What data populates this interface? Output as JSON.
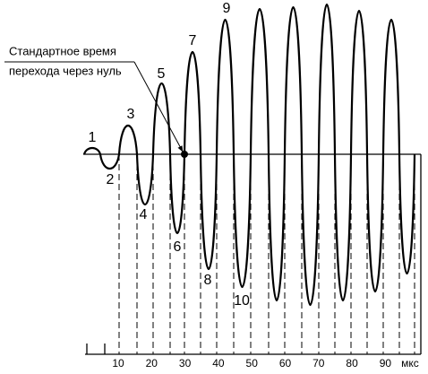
{
  "annotation": {
    "line1": "Стандартное время",
    "line2": "перехода через нуль"
  },
  "peak_labels": [
    "1",
    "2",
    "3",
    "4",
    "5",
    "6",
    "7",
    "8",
    "9",
    "10"
  ],
  "axis": {
    "ticks": [
      "10",
      "20",
      "30",
      "40",
      "50",
      "60",
      "70",
      "80",
      "90"
    ],
    "unit": "мкс"
  }
}
